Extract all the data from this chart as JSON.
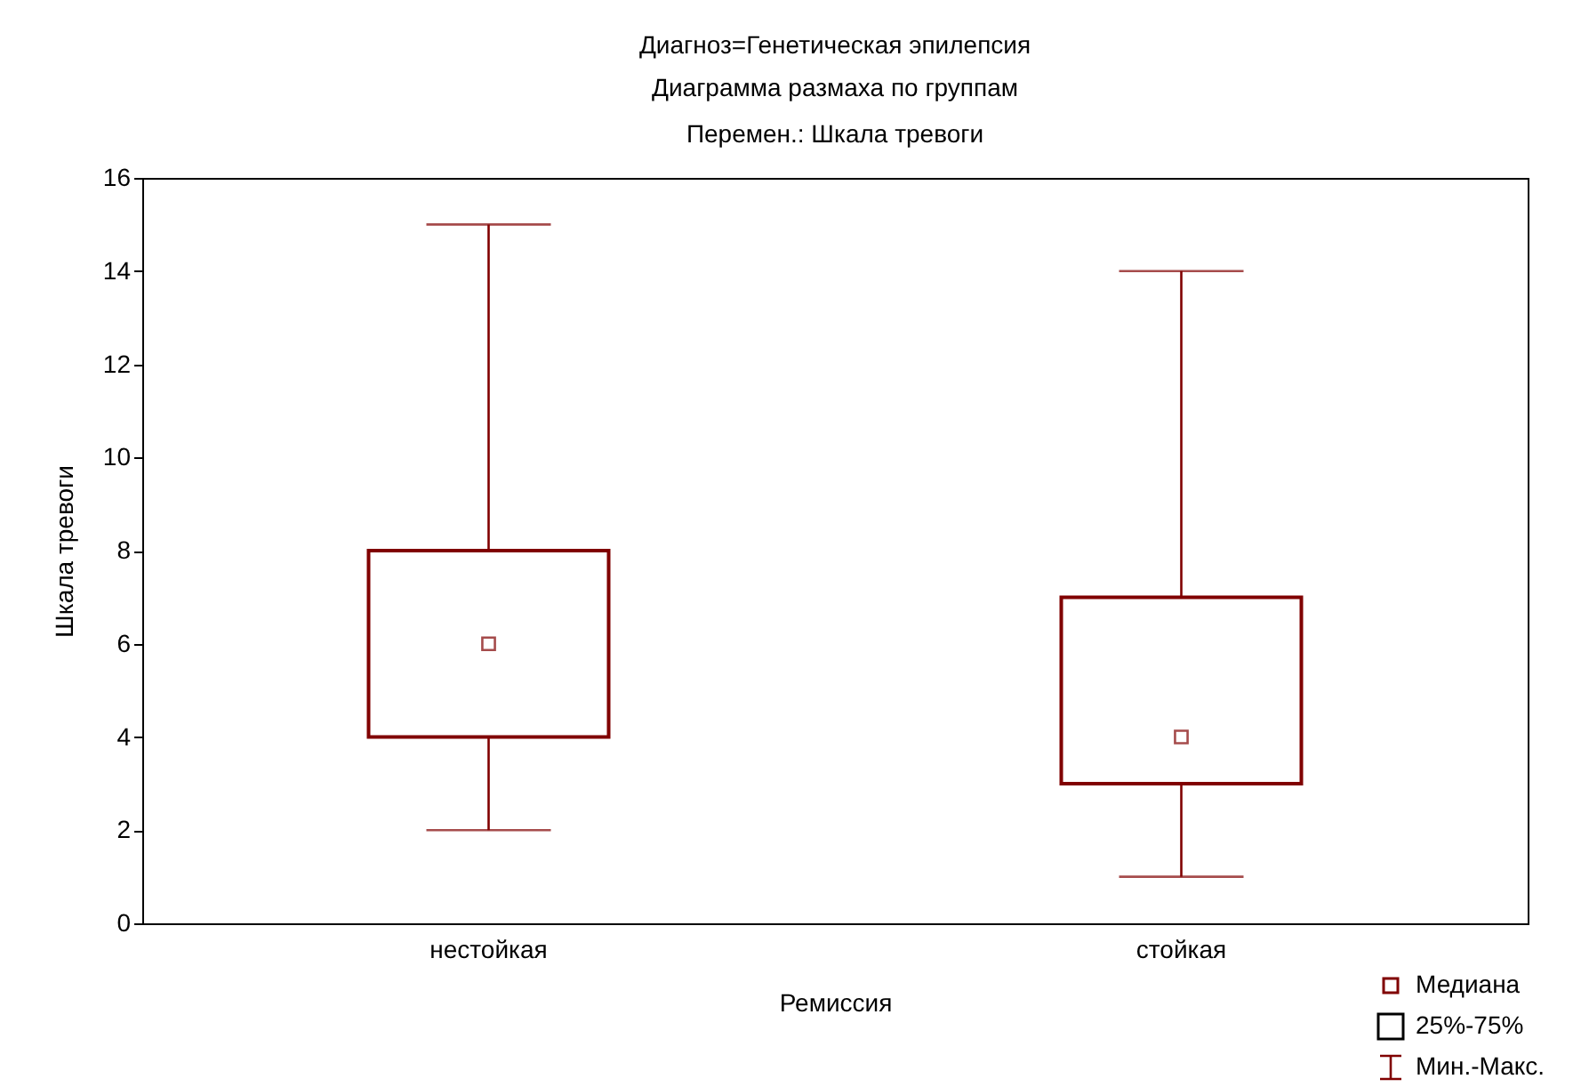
{
  "chart_data": {
    "type": "box",
    "title": "Диагноз=Генетическая эпилепсия",
    "subtitle": "Диаграмма размаха по группам\nПеремен.: Шкала тревоги",
    "xlabel": "Ремиссия",
    "ylabel": "Шкала тревоги",
    "categories": [
      "нестойкая",
      "стойкая"
    ],
    "series": [
      {
        "color": "#800000",
        "boxes": [
          {
            "low": 2,
            "q1": 4,
            "median": 6,
            "q3": 8,
            "high": 15
          },
          {
            "low": 1,
            "q1": 3,
            "median": 4,
            "q3": 7,
            "high": 14
          }
        ]
      }
    ],
    "ylim": [
      0,
      16
    ],
    "yticks": [
      0,
      2,
      4,
      6,
      8,
      10,
      12,
      14,
      16
    ],
    "grid": false,
    "marker": "square",
    "annotations": [
      "Медиана",
      "25%-75%",
      "Мин.-Макс."
    ]
  }
}
